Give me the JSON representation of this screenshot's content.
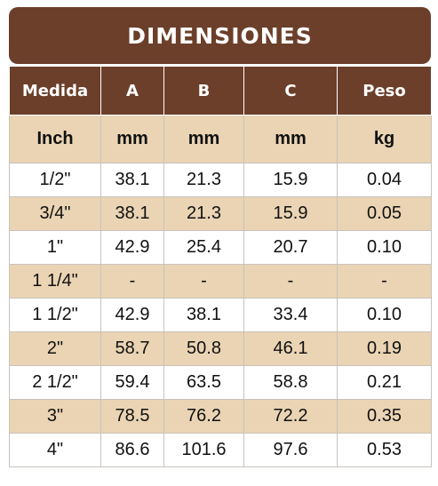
{
  "title": "DIMENSIONES",
  "headers": [
    "Medida",
    "A",
    "B",
    "C",
    "Peso"
  ],
  "units": [
    "Inch",
    "mm",
    "mm",
    "mm",
    "kg"
  ],
  "rows": [
    [
      "1/2\"",
      "38.1",
      "21.3",
      "15.9",
      "0.04"
    ],
    [
      "3/4\"",
      "38.1",
      "21.3",
      "15.9",
      "0.05"
    ],
    [
      "1\"",
      "42.9",
      "25.4",
      "20.7",
      "0.10"
    ],
    [
      "1 1/4\"",
      "-",
      "-",
      "-",
      "-"
    ],
    [
      "1 1/2\"",
      "42.9",
      "38.1",
      "33.4",
      "0.10"
    ],
    [
      "2\"",
      "58.7",
      "50.8",
      "46.1",
      "0.19"
    ],
    [
      "2 1/2\"",
      "59.4",
      "63.5",
      "58.8",
      "0.21"
    ],
    [
      "3\"",
      "78.5",
      "76.2",
      "72.2",
      "0.35"
    ],
    [
      "4\"",
      "86.6",
      "101.6",
      "97.6",
      "0.53"
    ]
  ],
  "colors": {
    "header_bg": "#6b3f2a",
    "alt_row_bg": "#ead4b4",
    "plain_row_bg": "#ffffff"
  }
}
